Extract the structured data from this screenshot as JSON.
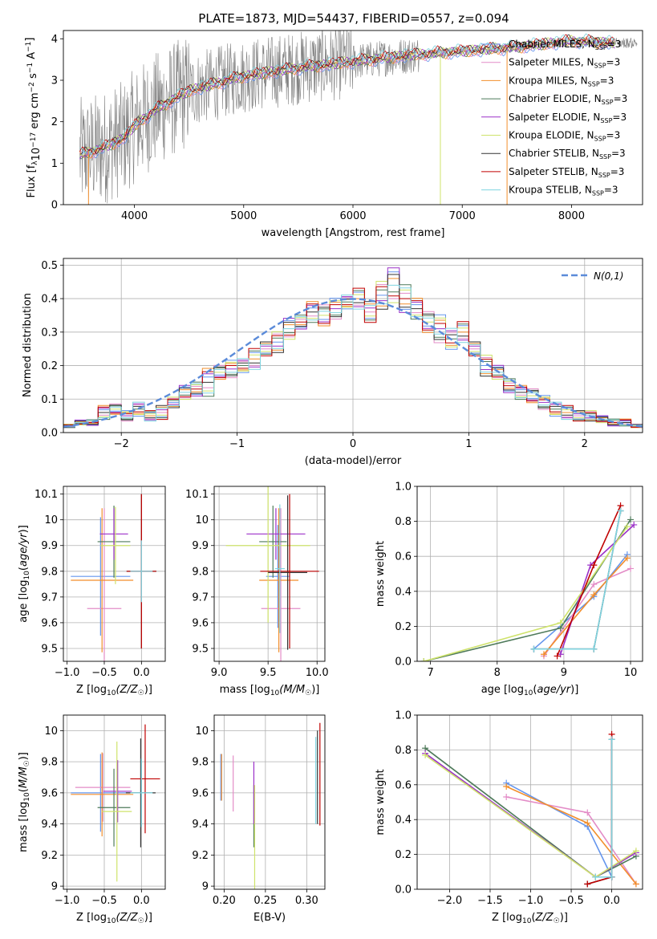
{
  "figure": {
    "title": "PLATE=1873, MJD=54437, FIBERID=0557, z=0.094"
  },
  "series_styles": [
    {
      "color": "#6495ED"
    },
    {
      "color": "#E38CC7"
    },
    {
      "color": "#F28E2B"
    },
    {
      "color": "#4E7A5A"
    },
    {
      "color": "#9B30C8"
    },
    {
      "color": "#CFE36B"
    },
    {
      "color": "#333333"
    },
    {
      "color": "#C00000"
    },
    {
      "color": "#7FD4E0"
    }
  ],
  "chart_data": [
    {
      "id": "spectrum",
      "type": "line",
      "xlabel": "wavelength [Angstrom, rest frame]",
      "ylabel": "Flux [f_λ 10^-17 erg cm^-2 s^-1 A^-1]",
      "xlim": [
        3350,
        8650
      ],
      "ylim": [
        0,
        4.2
      ],
      "xticks": [
        4000,
        5000,
        6000,
        7000,
        8000
      ],
      "yticks": [
        0,
        1,
        2,
        3,
        4
      ],
      "data_color": "#808080",
      "data_x_range": [
        3500,
        8600
      ],
      "legend": {
        "placement": "top-right",
        "entries": [
          {
            "label": "Chabrier MILES, N_SSP=3",
            "base": "Chabrier MILES, N",
            "sub": "SSP",
            "tail": "=3"
          },
          {
            "label": "Salpeter MILES, N_SSP=3",
            "base": "Salpeter MILES, N",
            "sub": "SSP",
            "tail": "=3"
          },
          {
            "label": "Kroupa MILES, N_SSP=3",
            "base": "Kroupa MILES, N",
            "sub": "SSP",
            "tail": "=3"
          },
          {
            "label": "Chabrier ELODIE, N_SSP=3",
            "base": "Chabrier ELODIE, N",
            "sub": "SSP",
            "tail": "=3"
          },
          {
            "label": "Salpeter ELODIE, N_SSP=3",
            "base": "Salpeter ELODIE, N",
            "sub": "SSP",
            "tail": "=3"
          },
          {
            "label": "Kroupa ELODIE, N_SSP=3",
            "base": "Kroupa ELODIE, N",
            "sub": "SSP",
            "tail": "=3"
          },
          {
            "label": "Chabrier STELIB, N_SSP=3",
            "base": "Chabrier STELIB, N",
            "sub": "SSP",
            "tail": "=3"
          },
          {
            "label": "Salpeter STELIB, N_SSP=3",
            "base": "Salpeter STELIB, N",
            "sub": "SSP",
            "tail": "=3"
          },
          {
            "label": "Kroupa STELIB, N_SSP=3",
            "base": "Kroupa STELIB, N",
            "sub": "SSP",
            "tail": "=3"
          }
        ]
      },
      "model_continuum": {
        "x": [
          3500,
          3700,
          3900,
          4000,
          4200,
          4500,
          5000,
          5500,
          6000,
          6500,
          7000,
          7500,
          8000,
          8400
        ],
        "y": [
          1.2,
          1.35,
          1.6,
          1.9,
          2.3,
          2.75,
          3.1,
          3.3,
          3.45,
          3.6,
          3.7,
          3.8,
          3.95,
          3.9
        ]
      }
    },
    {
      "id": "residuals",
      "type": "histogram",
      "xlabel": "(data-model)/error",
      "ylabel": "Normed distribution",
      "xlim": [
        -2.5,
        2.5
      ],
      "ylim": [
        0,
        0.52
      ],
      "xticks": [
        -2,
        -1,
        0,
        1,
        2
      ],
      "xticklabels": [
        "−2",
        "−1",
        "0",
        "1",
        "2"
      ],
      "yticks": [
        0,
        0.1,
        0.2,
        0.3,
        0.4,
        0.5
      ],
      "yticklabels": [
        "0.0",
        "0.1",
        "0.2",
        "0.3",
        "0.4",
        "0.5"
      ],
      "grid": true,
      "reference": {
        "label": "N(0,1)",
        "color": "#5B8BD9",
        "style": "dashed"
      },
      "bin_edges_start": -2.5,
      "bin_width": 0.1,
      "histogram_mean": [
        0.02,
        0.03,
        0.03,
        0.06,
        0.07,
        0.05,
        0.07,
        0.05,
        0.06,
        0.09,
        0.12,
        0.13,
        0.15,
        0.18,
        0.19,
        0.2,
        0.22,
        0.25,
        0.27,
        0.31,
        0.33,
        0.36,
        0.35,
        0.37,
        0.39,
        0.4,
        0.36,
        0.41,
        0.44,
        0.4,
        0.37,
        0.33,
        0.31,
        0.28,
        0.3,
        0.25,
        0.2,
        0.18,
        0.14,
        0.12,
        0.11,
        0.09,
        0.07,
        0.06,
        0.05,
        0.05,
        0.04,
        0.03,
        0.03,
        0.02
      ],
      "histogram_spread": [
        0.005,
        0.007,
        0.008,
        0.02,
        0.015,
        0.015,
        0.02,
        0.015,
        0.02,
        0.015,
        0.02,
        0.02,
        0.04,
        0.02,
        0.025,
        0.02,
        0.03,
        0.02,
        0.03,
        0.03,
        0.02,
        0.03,
        0.03,
        0.03,
        0.02,
        0.03,
        0.03,
        0.04,
        0.05,
        0.04,
        0.03,
        0.03,
        0.04,
        0.03,
        0.03,
        0.02,
        0.03,
        0.02,
        0.02,
        0.02,
        0.02,
        0.02,
        0.02,
        0.02,
        0.015,
        0.015,
        0.01,
        0.01,
        0.01,
        0.005
      ]
    },
    {
      "id": "age_vs_Z",
      "type": "errorbar",
      "xlabel_base": "Z [log",
      "xlabel_sub": "10",
      "xlabel_tail": "(Z/Z",
      "xlabel_sun": "☉",
      "xlabel_end": ")]",
      "ylabel": "age  [log10(age/yr)]",
      "xlim": [
        -1.05,
        0.32
      ],
      "ylim": [
        9.45,
        10.13
      ],
      "xticks": [
        -1.0,
        -0.5,
        0.0
      ],
      "xticklabels": [
        "−1.0",
        "−0.5",
        "0.0"
      ],
      "yticks": [
        9.5,
        9.6,
        9.7,
        9.8,
        9.9,
        10.0,
        10.1
      ],
      "grid": true,
      "points": [
        {
          "x": -0.55,
          "y": 9.78,
          "xerr": 0.4,
          "yerr": 0.23,
          "c": 0
        },
        {
          "x": -0.5,
          "y": 9.655,
          "xerr": 0.23,
          "yerr": 0.39,
          "c": 1
        },
        {
          "x": -0.53,
          "y": 9.765,
          "xerr": 0.42,
          "yerr": 0.28,
          "c": 2
        },
        {
          "x": -0.37,
          "y": 9.915,
          "xerr": 0.22,
          "yerr": 0.14,
          "c": 3
        },
        {
          "x": -0.37,
          "y": 9.945,
          "xerr": 0.19,
          "yerr": 0.1,
          "c": 4
        },
        {
          "x": -0.35,
          "y": 9.9,
          "xerr": 0.2,
          "yerr": 0.15,
          "c": 5
        },
        {
          "x": 0.0,
          "y": 9.8,
          "xerr": 0.2,
          "yerr": 0.3,
          "c": 6
        },
        {
          "x": 0.0,
          "y": 9.8,
          "xerr": 0.2,
          "yerr": 0.3,
          "c": 7
        },
        {
          "x": 0.0,
          "y": 9.8,
          "xerr": 0.15,
          "yerr": 0.12,
          "c": 8
        }
      ]
    },
    {
      "id": "age_vs_mass",
      "type": "errorbar",
      "xlabel_base": "mass [log",
      "xlabel_sub": "10",
      "xlabel_tail": "(M/M",
      "xlabel_sun": "☉",
      "xlabel_end": ")]",
      "xlim": [
        8.95,
        10.08
      ],
      "ylim": [
        9.45,
        10.13
      ],
      "xticks": [
        9.0,
        9.5,
        10.0
      ],
      "xticklabels": [
        "9.0",
        "9.5",
        "10.0"
      ],
      "yticks": [
        9.5,
        9.6,
        9.7,
        9.8,
        9.9,
        10.0,
        10.1
      ],
      "grid": true,
      "points": [
        {
          "x": 9.6,
          "y": 9.78,
          "xerr": 0.12,
          "yerr": 0.2,
          "c": 0
        },
        {
          "x": 9.63,
          "y": 9.655,
          "xerr": 0.2,
          "yerr": 0.39,
          "c": 1
        },
        {
          "x": 9.61,
          "y": 9.765,
          "xerr": 0.2,
          "yerr": 0.28,
          "c": 2
        },
        {
          "x": 9.55,
          "y": 9.915,
          "xerr": 0.14,
          "yerr": 0.14,
          "c": 3
        },
        {
          "x": 9.58,
          "y": 9.945,
          "xerr": 0.3,
          "yerr": 0.1,
          "c": 4
        },
        {
          "x": 9.5,
          "y": 9.9,
          "xerr": 0.43,
          "yerr": 0.3,
          "c": 5
        },
        {
          "x": 9.7,
          "y": 9.795,
          "xerr": 0.2,
          "yerr": 0.3,
          "c": 6
        },
        {
          "x": 9.72,
          "y": 9.8,
          "xerr": 0.3,
          "yerr": 0.3,
          "c": 7
        },
        {
          "x": 9.62,
          "y": 9.81,
          "xerr": 0.05,
          "yerr": 0.25,
          "c": 8
        }
      ]
    },
    {
      "id": "massweight_vs_age",
      "type": "line",
      "xlabel": "age  [log10(age/yr)]",
      "ylabel": "mass weight",
      "xlim": [
        6.8,
        10.18
      ],
      "ylim": [
        0,
        1.0
      ],
      "xticks": [
        7,
        8,
        9,
        10
      ],
      "yticks": [
        0,
        0.2,
        0.4,
        0.6,
        0.8,
        1.0
      ],
      "yticklabels": [
        "0.0",
        "0.2",
        "0.4",
        "0.6",
        "0.8",
        "1.0"
      ],
      "grid": true,
      "series": [
        {
          "c": 0,
          "x": [
            8.55,
            9.45,
            9.95
          ],
          "y": [
            0.07,
            0.37,
            0.61
          ]
        },
        {
          "c": 1,
          "x": [
            8.7,
            9.45,
            10.0
          ],
          "y": [
            0.03,
            0.44,
            0.53
          ]
        },
        {
          "c": 2,
          "x": [
            8.7,
            9.45,
            9.95
          ],
          "y": [
            0.04,
            0.38,
            0.59
          ]
        },
        {
          "c": 3,
          "x": [
            6.9,
            8.95,
            10.0
          ],
          "y": [
            0.0,
            0.19,
            0.81
          ]
        },
        {
          "c": 4,
          "x": [
            8.95,
            9.4,
            10.05
          ],
          "y": [
            0.04,
            0.55,
            0.78
          ]
        },
        {
          "c": 5,
          "x": [
            6.9,
            8.95,
            9.95
          ],
          "y": [
            0.0,
            0.22,
            0.77
          ]
        },
        {
          "c": 6,
          "x": [
            8.55,
            9.45,
            9.85
          ],
          "y": [
            0.07,
            0.07,
            0.86
          ]
        },
        {
          "c": 7,
          "x": [
            8.9,
            9.45,
            9.85
          ],
          "y": [
            0.03,
            0.55,
            0.89
          ]
        },
        {
          "c": 8,
          "x": [
            8.55,
            9.45,
            9.85
          ],
          "y": [
            0.07,
            0.07,
            0.86
          ]
        }
      ]
    },
    {
      "id": "mass_vs_Z",
      "type": "errorbar",
      "xlabel_base": "Z [log",
      "xlabel_sub": "10",
      "xlabel_tail": "(Z/Z",
      "xlabel_sun": "☉",
      "xlabel_end": ")]",
      "ylabel": "mass [log10(M/M☉)]",
      "xlim": [
        -1.05,
        0.32
      ],
      "ylim": [
        8.98,
        10.1
      ],
      "xticks": [
        -1.0,
        -0.5,
        0.0
      ],
      "xticklabels": [
        "−1.0",
        "−0.5",
        "0.0"
      ],
      "yticks": [
        9.0,
        9.2,
        9.4,
        9.6,
        9.8,
        10.0
      ],
      "grid": true,
      "points": [
        {
          "x": -0.55,
          "y": 9.6,
          "xerr": 0.4,
          "yerr": 0.25,
          "c": 0
        },
        {
          "x": -0.52,
          "y": 9.635,
          "xerr": 0.37,
          "yerr": 0.22,
          "c": 1
        },
        {
          "x": -0.53,
          "y": 9.59,
          "xerr": 0.42,
          "yerr": 0.27,
          "c": 2
        },
        {
          "x": -0.37,
          "y": 9.505,
          "xerr": 0.22,
          "yerr": 0.25,
          "c": 3
        },
        {
          "x": -0.32,
          "y": 9.61,
          "xerr": 0.19,
          "yerr": 0.2,
          "c": 4
        },
        {
          "x": -0.33,
          "y": 9.48,
          "xerr": 0.2,
          "yerr": 0.45,
          "c": 5
        },
        {
          "x": -0.01,
          "y": 9.6,
          "xerr": 0.2,
          "yerr": 0.35,
          "c": 6
        },
        {
          "x": 0.05,
          "y": 9.69,
          "xerr": 0.2,
          "yerr": 0.35,
          "c": 7
        },
        {
          "x": 0.0,
          "y": 9.6,
          "xerr": 0.15,
          "yerr": 0.22,
          "c": 8
        }
      ]
    },
    {
      "id": "mass_vs_EBV",
      "type": "errorbar",
      "xlabel": "E(B-V)",
      "xlim": [
        0.188,
        0.322
      ],
      "ylim": [
        8.98,
        10.1
      ],
      "xticks": [
        0.2,
        0.25,
        0.3
      ],
      "xticklabels": [
        "0.20",
        "0.25",
        "0.30"
      ],
      "yticks": [
        9.0,
        9.2,
        9.4,
        9.6,
        9.8,
        10.0
      ],
      "grid": true,
      "points": [
        {
          "x": 0.196,
          "y": 9.7,
          "xerr": 0.0,
          "yerr": 0.15,
          "c": 0
        },
        {
          "x": 0.211,
          "y": 9.66,
          "xerr": 0.0,
          "yerr": 0.18,
          "c": 1
        },
        {
          "x": 0.197,
          "y": 9.7,
          "xerr": 0.0,
          "yerr": 0.15,
          "c": 2
        },
        {
          "x": 0.236,
          "y": 9.45,
          "xerr": 0.0,
          "yerr": 0.2,
          "c": 3
        },
        {
          "x": 0.236,
          "y": 9.6,
          "xerr": 0.0,
          "yerr": 0.2,
          "c": 4
        },
        {
          "x": 0.237,
          "y": 9.3,
          "xerr": 0.0,
          "yerr": 0.35,
          "c": 5
        },
        {
          "x": 0.313,
          "y": 9.7,
          "xerr": 0.0,
          "yerr": 0.3,
          "c": 6
        },
        {
          "x": 0.316,
          "y": 9.72,
          "xerr": 0.0,
          "yerr": 0.33,
          "c": 7
        },
        {
          "x": 0.311,
          "y": 9.68,
          "xerr": 0.0,
          "yerr": 0.28,
          "c": 8
        }
      ]
    },
    {
      "id": "massweight_vs_Z",
      "type": "line",
      "xlabel": "Z [log10(Z/Z☉)]",
      "ylabel": "mass weight",
      "xlim": [
        -2.4,
        0.38
      ],
      "ylim": [
        0,
        1.0
      ],
      "xticks": [
        -2.0,
        -1.5,
        -1.0,
        -0.5,
        0.0
      ],
      "xticklabels": [
        "−2.0",
        "−1.5",
        "−1.0",
        "−0.5",
        "0.0"
      ],
      "yticks": [
        0,
        0.2,
        0.4,
        0.6,
        0.8,
        1.0
      ],
      "yticklabels": [
        "0.0",
        "0.2",
        "0.4",
        "0.6",
        "0.8",
        "1.0"
      ],
      "grid": true,
      "series": [
        {
          "c": 0,
          "x": [
            -1.3,
            -0.3,
            0.0
          ],
          "y": [
            0.61,
            0.36,
            0.07
          ]
        },
        {
          "c": 1,
          "x": [
            -1.3,
            -0.3,
            0.3
          ],
          "y": [
            0.53,
            0.44,
            0.03
          ]
        },
        {
          "c": 2,
          "x": [
            -1.3,
            -0.3,
            0.3
          ],
          "y": [
            0.59,
            0.38,
            0.03
          ]
        },
        {
          "c": 3,
          "x": [
            -2.3,
            -0.2,
            0.3
          ],
          "y": [
            0.81,
            0.07,
            0.19
          ]
        },
        {
          "c": 4,
          "x": [
            -2.3,
            -0.2,
            0.3
          ],
          "y": [
            0.78,
            0.07,
            0.21
          ]
        },
        {
          "c": 5,
          "x": [
            -2.3,
            -0.2,
            0.3
          ],
          "y": [
            0.77,
            0.07,
            0.22
          ]
        },
        {
          "c": 6,
          "x": [
            -0.3,
            0.0,
            0.0
          ],
          "y": [
            0.03,
            0.07,
            0.86
          ]
        },
        {
          "c": 7,
          "x": [
            -0.3,
            0.0,
            0.0
          ],
          "y": [
            0.03,
            0.07,
            0.89
          ]
        },
        {
          "c": 8,
          "x": [
            -0.2,
            0.0,
            0.0
          ],
          "y": [
            0.07,
            0.07,
            0.86
          ]
        }
      ]
    }
  ]
}
